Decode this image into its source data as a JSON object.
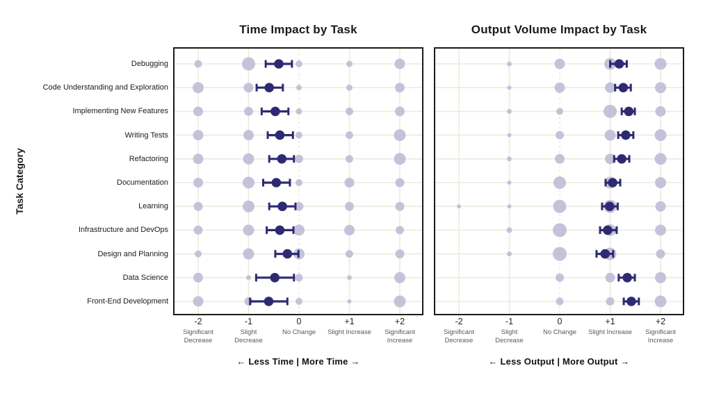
{
  "y_axis_title": "Task Category",
  "colors": {
    "bubble": "#bfbdd6",
    "mean": "#2e2a72",
    "grid": "#eceade",
    "zero_line": "#e9e5d2",
    "border": "#1a1a1a",
    "text": "#1a1a1a",
    "muted": "#595959"
  },
  "chart_data": [
    {
      "type": "bubble",
      "title": "Time Impact by Task",
      "caption": "←  Less Time  |  More Time  →",
      "x_domain": [
        -2.5,
        2.5
      ],
      "grid": true,
      "zero_line_dashed": true,
      "x_ticks": [
        {
          "value": -2,
          "label": "-2",
          "sublabel": "Significant Decrease"
        },
        {
          "value": -1,
          "label": "-1",
          "sublabel": "Slight Decrease"
        },
        {
          "value": 0,
          "label": "0",
          "sublabel": "No Change"
        },
        {
          "value": 1,
          "label": "+1",
          "sublabel": "Slight Increase"
        },
        {
          "value": 2,
          "label": "+2",
          "sublabel": "Significant Increase"
        }
      ],
      "rows": [
        {
          "category": "Debugging",
          "mean": -0.4,
          "ci": [
            -0.66,
            -0.14
          ],
          "bubble_radii": [
            5.5,
            9.5,
            5.0,
            4.5,
            7.5
          ]
        },
        {
          "category": "Code Understanding and Exploration",
          "mean": -0.59,
          "ci": [
            -0.84,
            -0.32
          ],
          "bubble_radii": [
            8.0,
            7.0,
            4.0,
            4.5,
            7.0
          ]
        },
        {
          "category": "Implementing New Features",
          "mean": -0.47,
          "ci": [
            -0.74,
            -0.21
          ],
          "bubble_radii": [
            7.0,
            6.5,
            4.5,
            5.5,
            7.0
          ]
        },
        {
          "category": "Writing Tests",
          "mean": -0.38,
          "ci": [
            -0.62,
            -0.12
          ],
          "bubble_radii": [
            7.5,
            7.5,
            5.0,
            5.5,
            8.5
          ]
        },
        {
          "category": "Refactoring",
          "mean": -0.34,
          "ci": [
            -0.59,
            -0.1
          ],
          "bubble_radii": [
            7.5,
            8.0,
            6.0,
            5.5,
            8.5
          ]
        },
        {
          "category": "Documentation",
          "mean": -0.45,
          "ci": [
            -0.71,
            -0.18
          ],
          "bubble_radii": [
            7.0,
            8.5,
            5.0,
            7.0,
            6.5
          ]
        },
        {
          "category": "Learning",
          "mean": -0.33,
          "ci": [
            -0.59,
            -0.07
          ],
          "bubble_radii": [
            6.5,
            8.5,
            6.5,
            6.5,
            6.5
          ]
        },
        {
          "category": "Infrastructure and DevOps",
          "mean": -0.38,
          "ci": [
            -0.64,
            -0.11
          ],
          "bubble_radii": [
            6.5,
            8.0,
            8.0,
            7.5,
            6.0
          ]
        },
        {
          "category": "Design and Planning",
          "mean": -0.23,
          "ci": [
            -0.47,
            -0.01
          ],
          "bubble_radii": [
            5.0,
            8.0,
            8.0,
            5.5,
            6.5
          ]
        },
        {
          "category": "Data Science",
          "mean": -0.48,
          "ci": [
            -0.85,
            -0.1
          ],
          "bubble_radii": [
            7.0,
            3.5,
            5.5,
            3.5,
            8.0
          ]
        },
        {
          "category": "Front-End Development",
          "mean": -0.6,
          "ci": [
            -0.97,
            -0.23
          ],
          "bubble_radii": [
            7.5,
            6.0,
            5.0,
            3.0,
            8.5
          ]
        }
      ]
    },
    {
      "type": "bubble",
      "title": "Output Volume Impact by Task",
      "caption": "←  Less Output  |  More Output  →",
      "x_domain": [
        -2.5,
        2.5
      ],
      "grid": true,
      "zero_line_dashed": true,
      "x_ticks": [
        {
          "value": -2,
          "label": "-2",
          "sublabel": "Significant Decrease"
        },
        {
          "value": -1,
          "label": "-1",
          "sublabel": "Slight Decrease"
        },
        {
          "value": 0,
          "label": "0",
          "sublabel": "No Change"
        },
        {
          "value": 1,
          "label": "+1",
          "sublabel": "Slight Increase"
        },
        {
          "value": 2,
          "label": "+2",
          "sublabel": "Significant Increase"
        }
      ],
      "rows": [
        {
          "category": "Debugging",
          "mean": 1.18,
          "ci": [
            1.0,
            1.33
          ],
          "bubble_radii": [
            0,
            3.5,
            7.5,
            8.5,
            8.5
          ]
        },
        {
          "category": "Code Understanding and Exploration",
          "mean": 1.26,
          "ci": [
            1.1,
            1.41
          ],
          "bubble_radii": [
            0,
            3.0,
            7.5,
            7.5,
            8.0
          ]
        },
        {
          "category": "Implementing New Features",
          "mean": 1.37,
          "ci": [
            1.23,
            1.49
          ],
          "bubble_radii": [
            0,
            3.5,
            5.0,
            9.5,
            7.5
          ]
        },
        {
          "category": "Writing Tests",
          "mean": 1.31,
          "ci": [
            1.16,
            1.46
          ],
          "bubble_radii": [
            0,
            3.0,
            6.0,
            8.0,
            8.5
          ]
        },
        {
          "category": "Refactoring",
          "mean": 1.23,
          "ci": [
            1.08,
            1.38
          ],
          "bubble_radii": [
            0,
            3.5,
            7.0,
            7.5,
            8.5
          ]
        },
        {
          "category": "Documentation",
          "mean": 1.05,
          "ci": [
            0.91,
            1.2
          ],
          "bubble_radii": [
            0,
            3.0,
            9.0,
            8.5,
            8.0
          ]
        },
        {
          "category": "Learning",
          "mean": 0.99,
          "ci": [
            0.84,
            1.15
          ],
          "bubble_radii": [
            3.0,
            3.0,
            9.5,
            9.5,
            7.5
          ]
        },
        {
          "category": "Infrastructure and DevOps",
          "mean": 0.95,
          "ci": [
            0.8,
            1.13
          ],
          "bubble_radii": [
            0,
            4.0,
            10.0,
            8.5,
            8.0
          ]
        },
        {
          "category": "Design and Planning",
          "mean": 0.9,
          "ci": [
            0.73,
            1.06
          ],
          "bubble_radii": [
            0,
            3.5,
            10.0,
            9.0,
            6.5
          ]
        },
        {
          "category": "Data Science",
          "mean": 1.34,
          "ci": [
            1.17,
            1.49
          ],
          "bubble_radii": [
            0,
            0,
            6.0,
            7.0,
            8.0
          ]
        },
        {
          "category": "Front-End Development",
          "mean": 1.42,
          "ci": [
            1.27,
            1.57
          ],
          "bubble_radii": [
            0,
            0,
            5.5,
            6.0,
            8.5
          ]
        }
      ]
    }
  ]
}
